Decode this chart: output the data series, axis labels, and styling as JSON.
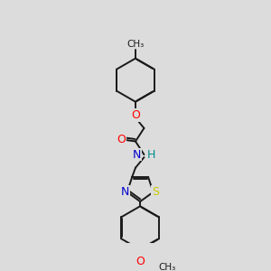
{
  "background_color": "#dcdcdc",
  "bond_color": "#1a1a1a",
  "atom_colors": {
    "O": "#ff0000",
    "N": "#0000cd",
    "S": "#cccc00",
    "H": "#008b8b",
    "C": "#1a1a1a"
  },
  "figsize": [
    3.0,
    3.0
  ],
  "dpi": 100,
  "lw": 1.4
}
